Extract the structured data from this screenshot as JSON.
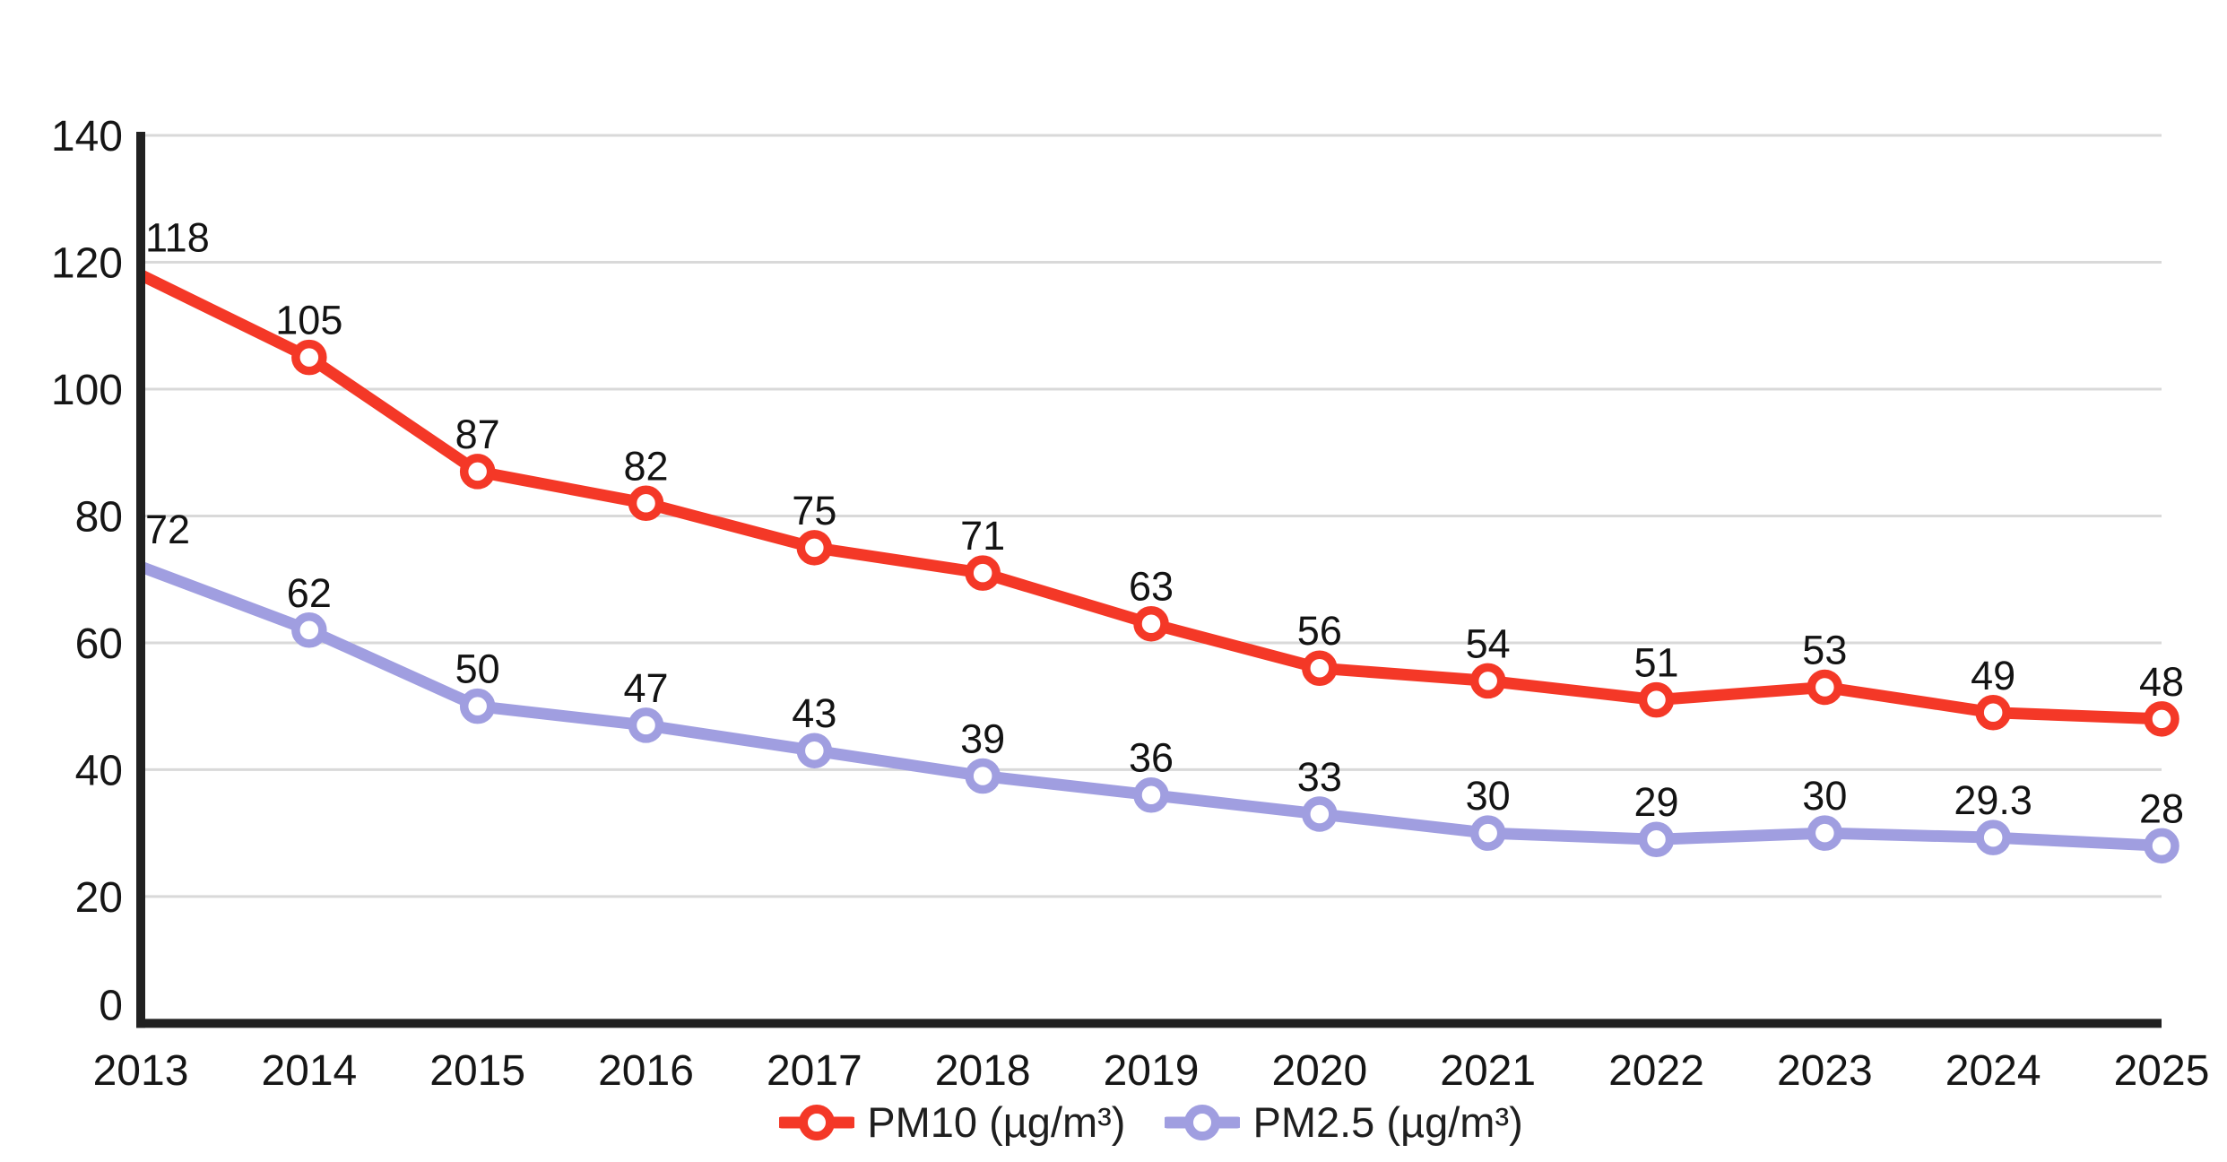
{
  "chart_data": {
    "type": "line",
    "title": "",
    "x": [
      2013,
      2014,
      2015,
      2016,
      2017,
      2018,
      2019,
      2020,
      2021,
      2022,
      2023,
      2024,
      2025
    ],
    "series": [
      {
        "id": "pm10",
        "name": "PM10 (µg/m³)",
        "color": "#f43827",
        "values": [
          118,
          105,
          87,
          82,
          75,
          71,
          63,
          56,
          54,
          51,
          53,
          49,
          48
        ]
      },
      {
        "id": "pm25",
        "name": "PM2.5 (µg/m³)",
        "color": "#a09ee0",
        "values": [
          72,
          62,
          50,
          47,
          43,
          39,
          36,
          33,
          30,
          29,
          30,
          29.3,
          28
        ]
      }
    ],
    "xlabel": "",
    "ylabel": "",
    "ylim": [
      0,
      140
    ],
    "ytick_step": 20,
    "grid": true,
    "legend_position": "bottom",
    "colors": {
      "axis": "#212121",
      "grid": "#d9d9d9",
      "tick_label": "#161616",
      "data_label": "#131313",
      "background": "#ffffff"
    }
  }
}
